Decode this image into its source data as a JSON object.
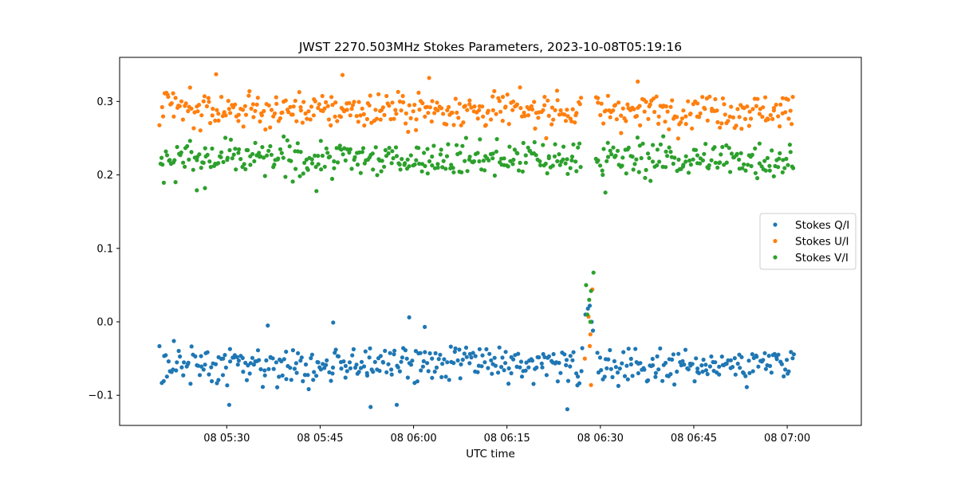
{
  "chart_data": {
    "type": "scatter",
    "title": "JWST 2270.503MHz Stokes Parameters, 2023-10-08T05:19:16",
    "xlabel": "UTC time",
    "ylabel": "",
    "x_unit": "minutes after 08 05:00 UTC",
    "xlim": [
      12.8,
      71.9
    ],
    "ylim": [
      -0.141,
      0.36
    ],
    "x_ticks": [
      {
        "value": 30,
        "label": "08 05:30"
      },
      {
        "value": 45,
        "label": "08 05:45"
      },
      {
        "value": 60,
        "label": "08 06:00"
      },
      {
        "value": 75,
        "label": "08 06:15"
      },
      {
        "value": 90,
        "label": "08 06:30"
      },
      {
        "value": 105,
        "label": "08 06:45"
      },
      {
        "value": 120,
        "label": "08 07:00"
      }
    ],
    "y_ticks": [
      {
        "value": -0.1,
        "label": "−0.1"
      },
      {
        "value": 0.0,
        "label": "0.0"
      },
      {
        "value": 0.1,
        "label": "0.1"
      },
      {
        "value": 0.2,
        "label": "0.2"
      },
      {
        "value": 0.3,
        "label": "0.3"
      }
    ],
    "x_range_minutes": [
      19.3,
      121.0
    ],
    "grid": false,
    "legend_position": "center-right",
    "series": [
      {
        "name": "Stokes Q/I",
        "color": "#1f77b4",
        "baseline": -0.058,
        "scatter": 0.02,
        "outliers": [
          {
            "x": 30.4,
            "y": -0.113
          },
          {
            "x": 53.1,
            "y": -0.116
          },
          {
            "x": 57.3,
            "y": -0.113
          },
          {
            "x": 84.7,
            "y": -0.119
          },
          {
            "x": 59.3,
            "y": 0.006
          },
          {
            "x": 36.6,
            "y": -0.005
          },
          {
            "x": 47.1,
            "y": -0.001
          },
          {
            "x": 61.8,
            "y": -0.007
          },
          {
            "x": 88.0,
            "y": 0.018
          },
          {
            "x": 88.3,
            "y": 0.022
          },
          {
            "x": 87.6,
            "y": 0.01
          },
          {
            "x": 88.6,
            "y": 0.0
          },
          {
            "x": 88.8,
            "y": -0.012
          }
        ]
      },
      {
        "name": "Stokes U/I",
        "color": "#ff7f0e",
        "baseline": 0.288,
        "scatter": 0.02,
        "outliers": [
          {
            "x": 28.3,
            "y": 0.337
          },
          {
            "x": 48.6,
            "y": 0.336
          },
          {
            "x": 62.5,
            "y": 0.332
          },
          {
            "x": 96.0,
            "y": 0.327
          },
          {
            "x": 88.1,
            "y": 0.007
          },
          {
            "x": 88.4,
            "y": -0.017
          },
          {
            "x": 88.7,
            "y": 0.044
          },
          {
            "x": 88.3,
            "y": -0.033
          },
          {
            "x": 87.5,
            "y": -0.05
          },
          {
            "x": 88.5,
            "y": -0.086
          }
        ]
      },
      {
        "name": "Stokes V/I",
        "color": "#2ca02c",
        "baseline": 0.222,
        "scatter": 0.02,
        "outliers": [
          {
            "x": 26.5,
            "y": 0.182
          },
          {
            "x": 25.2,
            "y": 0.179
          },
          {
            "x": 44.4,
            "y": 0.178
          },
          {
            "x": 90.8,
            "y": 0.176
          },
          {
            "x": 88.9,
            "y": 0.067
          },
          {
            "x": 88.5,
            "y": 0.042
          },
          {
            "x": 87.7,
            "y": 0.05
          },
          {
            "x": 88.2,
            "y": 0.03
          },
          {
            "x": 87.9,
            "y": 0.01
          },
          {
            "x": 88.4,
            "y": 0.0
          }
        ]
      }
    ]
  }
}
